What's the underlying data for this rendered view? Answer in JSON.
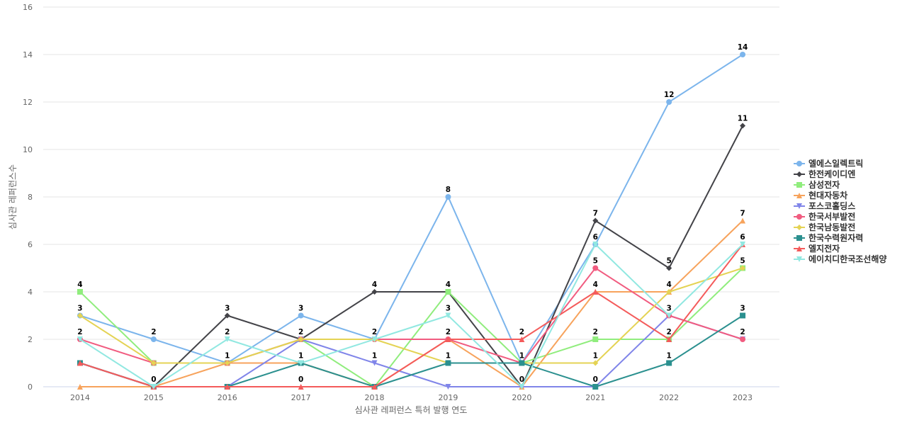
{
  "chart_data": {
    "type": "line",
    "xlabel": "심사관 레퍼런스 특허 발행 연도",
    "ylabel": "심사관 레퍼런스수",
    "x": [
      "2014",
      "2015",
      "2016",
      "2017",
      "2018",
      "2019",
      "2020",
      "2021",
      "2022",
      "2023"
    ],
    "ylim": [
      0,
      16
    ],
    "yticks": [
      0,
      2,
      4,
      6,
      8,
      10,
      12,
      14,
      16
    ],
    "grid": true,
    "legend_position": "right",
    "series": [
      {
        "name": "엘에스일렉트릭",
        "color": "#7cb5ec",
        "marker": "circle",
        "values": [
          3,
          2,
          1,
          3,
          2,
          8,
          1,
          6,
          12,
          14
        ],
        "labels": [
          3,
          2,
          1,
          3,
          2,
          8,
          1,
          6,
          12,
          14
        ]
      },
      {
        "name": "한전케이디엔",
        "color": "#434348",
        "marker": "diamond",
        "values": [
          1,
          0,
          3,
          2,
          4,
          4,
          0,
          7,
          5,
          11
        ],
        "labels": [
          null,
          0,
          3,
          null,
          4,
          null,
          null,
          7,
          5,
          11
        ]
      },
      {
        "name": "삼성전자",
        "color": "#90ed7d",
        "marker": "square",
        "values": [
          4,
          1,
          1,
          2,
          0,
          4,
          1,
          2,
          2,
          5
        ],
        "labels": [
          4,
          null,
          null,
          null,
          null,
          4,
          null,
          2,
          null,
          null
        ]
      },
      {
        "name": "현대자동차",
        "color": "#f7a35c",
        "marker": "triangle",
        "values": [
          0,
          0,
          1,
          1,
          0,
          2,
          0,
          4,
          4,
          7
        ],
        "labels": [
          null,
          null,
          null,
          null,
          null,
          null,
          null,
          4,
          null,
          7
        ]
      },
      {
        "name": "포스코홀딩스",
        "color": "#8085e9",
        "marker": "triangle-down",
        "values": [
          1,
          0,
          0,
          2,
          1,
          0,
          0,
          0,
          3,
          2
        ],
        "labels": [
          null,
          null,
          null,
          null,
          1,
          null,
          null,
          null,
          null,
          null
        ]
      },
      {
        "name": "한국서부발전",
        "color": "#f15c80",
        "marker": "circle",
        "values": [
          2,
          1,
          1,
          2,
          2,
          2,
          1,
          5,
          3,
          2
        ],
        "labels": [
          2,
          null,
          null,
          null,
          null,
          2,
          null,
          5,
          null,
          2
        ]
      },
      {
        "name": "한국남동발전",
        "color": "#e4d354",
        "marker": "diamond",
        "values": [
          3,
          1,
          1,
          2,
          2,
          1,
          1,
          1,
          4,
          5
        ],
        "labels": [
          null,
          null,
          null,
          2,
          null,
          null,
          null,
          1,
          4,
          5
        ]
      },
      {
        "name": "한국수력원자력",
        "color": "#2b908f",
        "marker": "square",
        "values": [
          1,
          0,
          0,
          1,
          0,
          1,
          1,
          0,
          1,
          3
        ],
        "labels": [
          null,
          null,
          null,
          1,
          null,
          1,
          null,
          0,
          1,
          3
        ]
      },
      {
        "name": "엘지전자",
        "color": "#f45b5b",
        "marker": "triangle",
        "values": [
          1,
          0,
          0,
          0,
          0,
          2,
          2,
          4,
          2,
          6
        ],
        "labels": [
          null,
          null,
          null,
          0,
          null,
          null,
          2,
          null,
          2,
          null
        ]
      },
      {
        "name": "에이치디한국조선해양",
        "color": "#91e8e1",
        "marker": "triangle-down",
        "values": [
          2,
          0,
          2,
          1,
          2,
          3,
          0,
          6,
          3,
          6
        ],
        "labels": [
          null,
          null,
          2,
          null,
          null,
          3,
          0,
          null,
          3,
          6
        ]
      }
    ]
  }
}
